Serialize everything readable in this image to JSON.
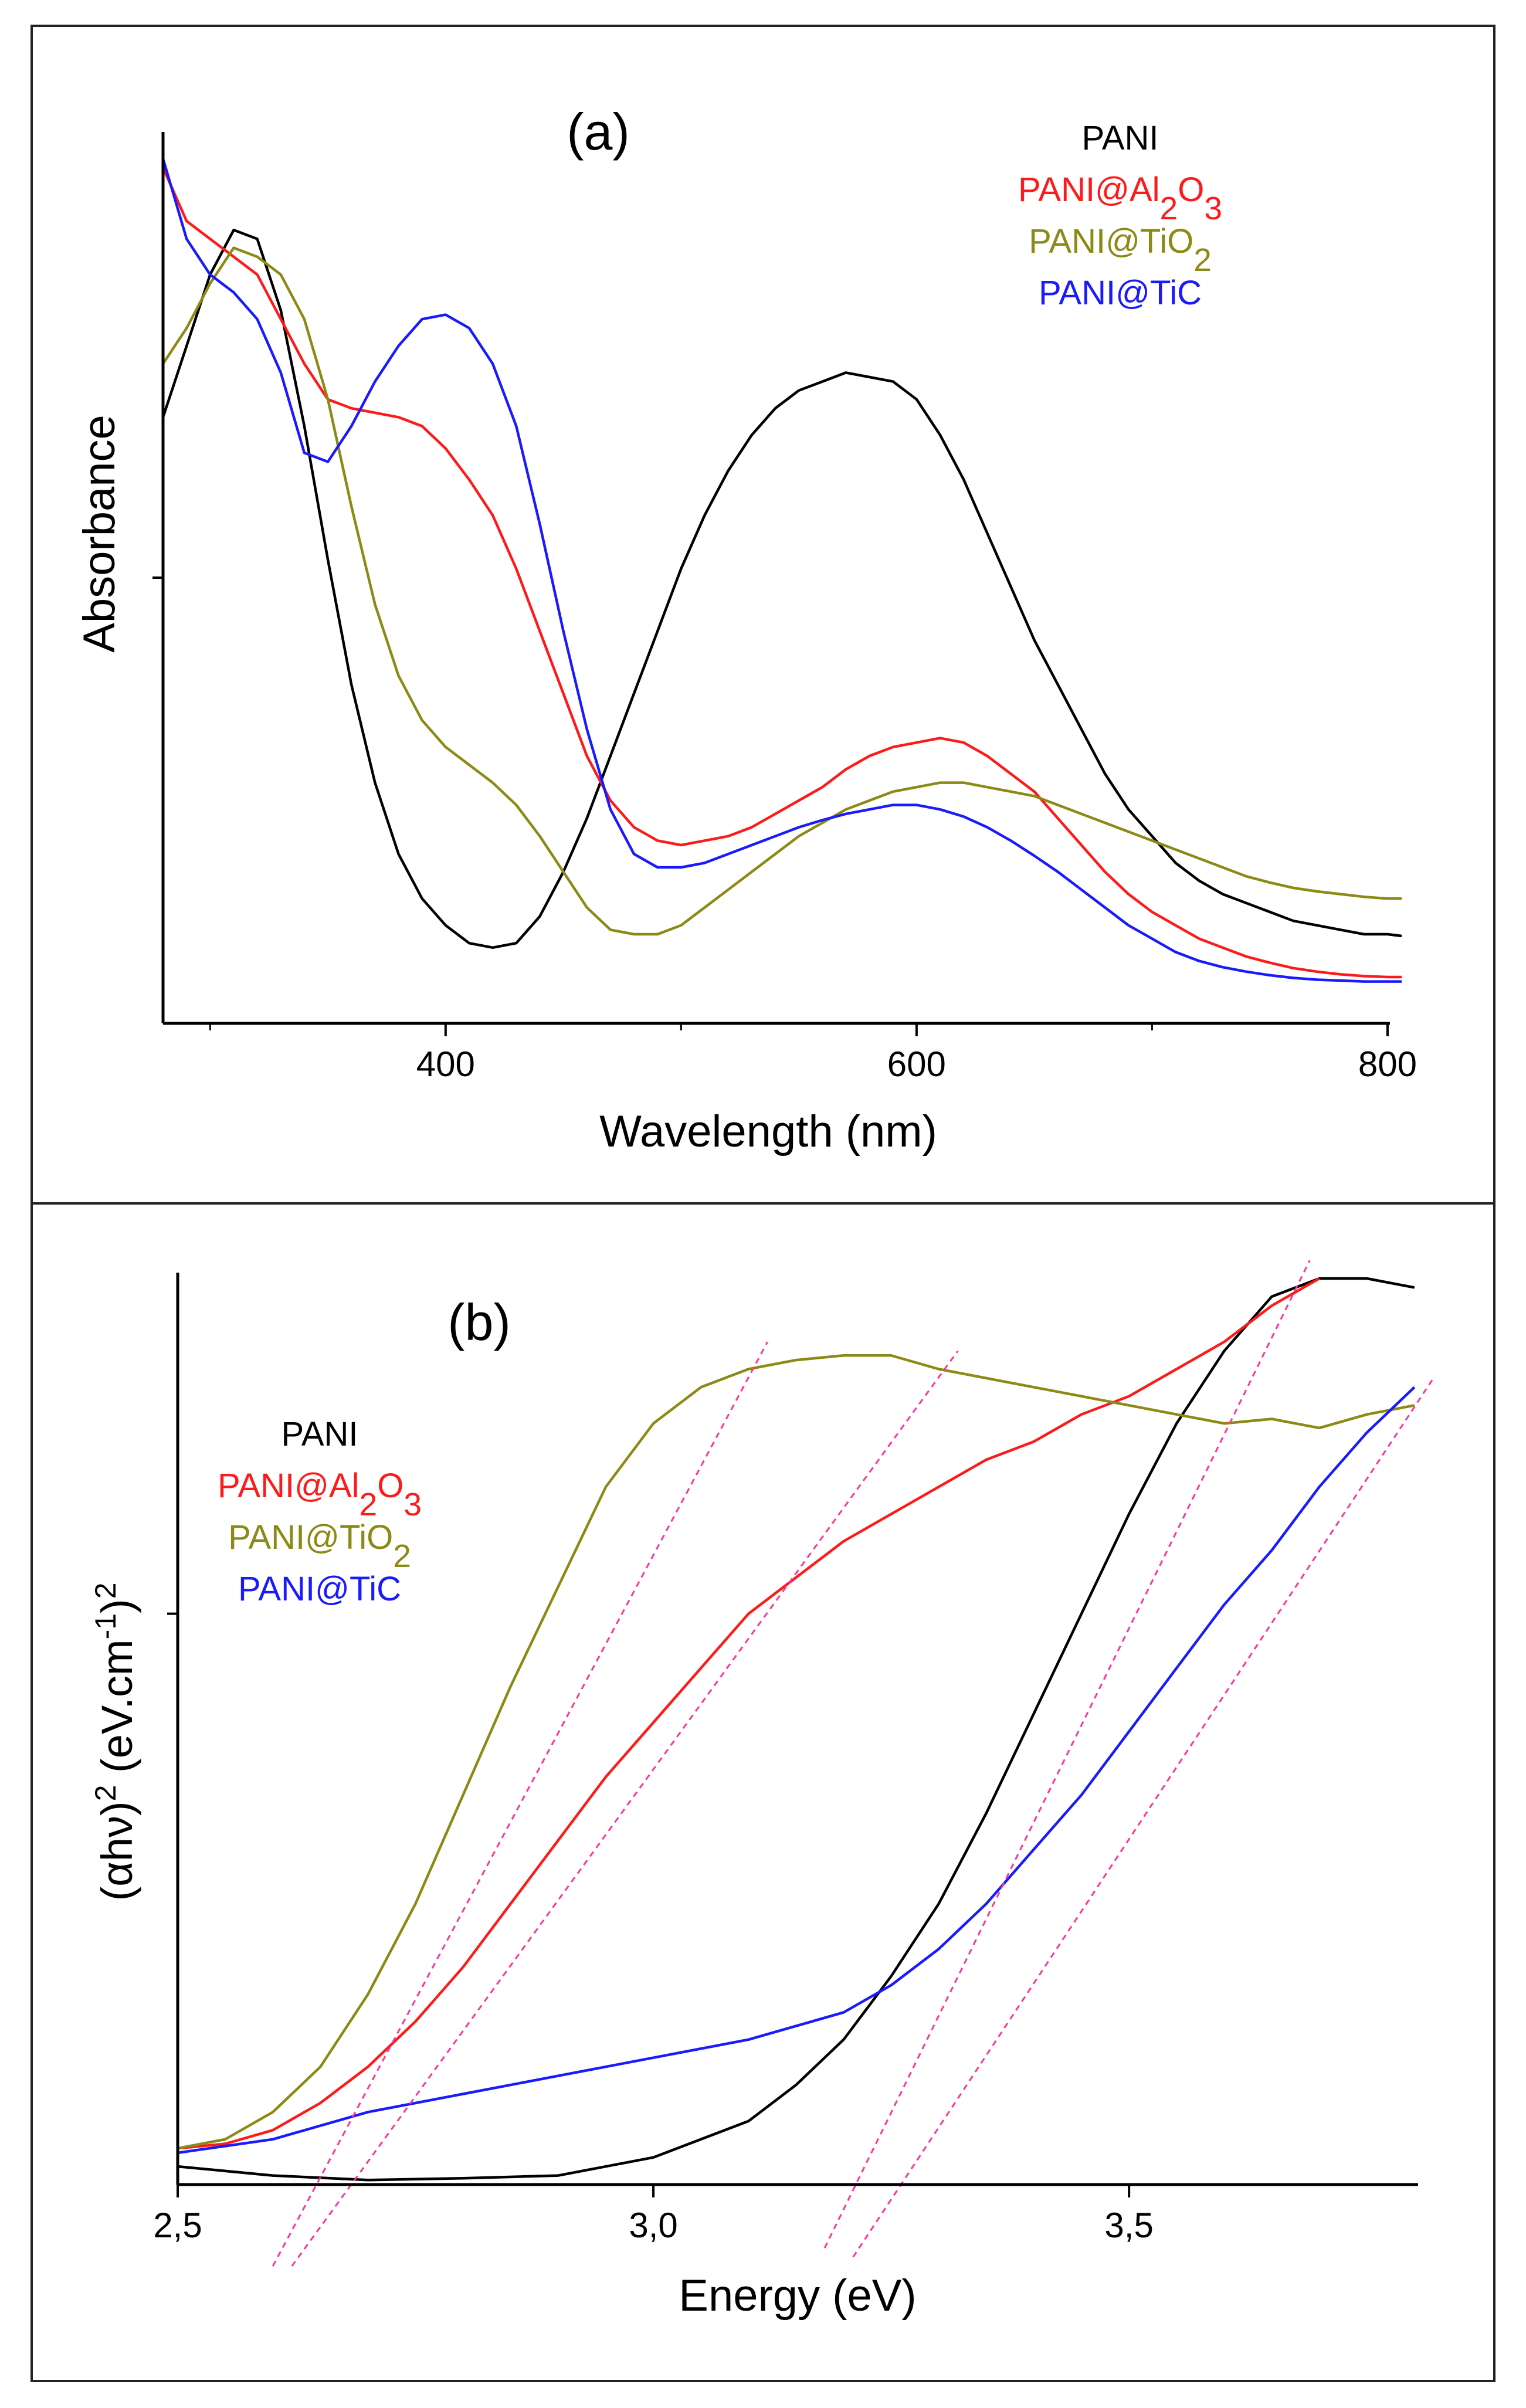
{
  "colors": {
    "PANI": "#000000",
    "PANI@Al2O3": "#ff1a1a",
    "PANI@TiO2": "#8c8a14",
    "PANI@TiC": "#1a1aff",
    "fit": "#ff3399"
  },
  "chart_data": [
    {
      "type": "line",
      "panel_label": "(a)",
      "xlabel": "Wavelength (nm)",
      "ylabel": "Absorbance",
      "xlim": [
        280,
        806
      ],
      "ylim": [
        0,
        1
      ],
      "x_ticks": [
        {
          "value": 400,
          "label": "400"
        },
        {
          "value": 600,
          "label": "600"
        },
        {
          "value": 800,
          "label": "800"
        }
      ],
      "x_minor_ticks": [
        300,
        500,
        700
      ],
      "y_ticks": [
        0.5
      ],
      "legend": [
        {
          "key": "PANI",
          "label": "PANI",
          "parts": [
            {
              "t": "PANI",
              "sub": false
            }
          ]
        },
        {
          "key": "PANI@Al2O3",
          "label": "PANI@Al2O3",
          "parts": [
            {
              "t": "PANI@Al",
              "sub": false
            },
            {
              "t": "2",
              "sub": true
            },
            {
              "t": "O",
              "sub": false
            },
            {
              "t": "3",
              "sub": true
            }
          ]
        },
        {
          "key": "PANI@TiO2",
          "label": "PANI@TiO2",
          "parts": [
            {
              "t": "PANI@TiO",
              "sub": false
            },
            {
              "t": "2",
              "sub": true
            }
          ]
        },
        {
          "key": "PANI@TiC",
          "label": "PANI@TiC",
          "parts": [
            {
              "t": "PANI@TiC",
              "sub": false
            }
          ]
        }
      ],
      "series": [
        {
          "name": "PANI",
          "x": [
            280,
            290,
            300,
            310,
            320,
            330,
            340,
            350,
            360,
            370,
            380,
            390,
            400,
            410,
            420,
            430,
            440,
            450,
            460,
            470,
            480,
            490,
            500,
            510,
            520,
            530,
            540,
            550,
            560,
            570,
            580,
            590,
            600,
            610,
            620,
            630,
            640,
            650,
            660,
            670,
            680,
            690,
            700,
            710,
            720,
            730,
            740,
            750,
            760,
            770,
            780,
            790,
            800,
            806
          ],
          "y": [
            0.68,
            0.76,
            0.84,
            0.89,
            0.88,
            0.8,
            0.67,
            0.52,
            0.38,
            0.27,
            0.19,
            0.14,
            0.11,
            0.09,
            0.085,
            0.09,
            0.12,
            0.17,
            0.23,
            0.3,
            0.37,
            0.44,
            0.51,
            0.57,
            0.62,
            0.66,
            0.69,
            0.71,
            0.72,
            0.73,
            0.725,
            0.72,
            0.7,
            0.66,
            0.61,
            0.55,
            0.49,
            0.43,
            0.38,
            0.33,
            0.28,
            0.24,
            0.21,
            0.18,
            0.16,
            0.145,
            0.135,
            0.125,
            0.115,
            0.11,
            0.105,
            0.1,
            0.1,
            0.098
          ]
        },
        {
          "name": "PANI@Al2O3",
          "x": [
            280,
            290,
            300,
            310,
            320,
            330,
            340,
            350,
            360,
            370,
            380,
            390,
            400,
            410,
            420,
            430,
            440,
            450,
            460,
            470,
            480,
            490,
            500,
            510,
            520,
            530,
            540,
            550,
            560,
            570,
            580,
            590,
            600,
            610,
            620,
            630,
            640,
            650,
            660,
            670,
            680,
            690,
            700,
            710,
            720,
            730,
            740,
            750,
            760,
            770,
            780,
            790,
            800,
            806
          ],
          "y": [
            0.96,
            0.9,
            0.88,
            0.86,
            0.84,
            0.79,
            0.74,
            0.7,
            0.69,
            0.685,
            0.68,
            0.67,
            0.645,
            0.61,
            0.57,
            0.51,
            0.44,
            0.37,
            0.3,
            0.25,
            0.22,
            0.205,
            0.2,
            0.205,
            0.21,
            0.22,
            0.235,
            0.25,
            0.265,
            0.285,
            0.3,
            0.31,
            0.315,
            0.32,
            0.315,
            0.3,
            0.28,
            0.26,
            0.23,
            0.2,
            0.17,
            0.145,
            0.125,
            0.11,
            0.095,
            0.085,
            0.075,
            0.068,
            0.062,
            0.058,
            0.055,
            0.053,
            0.052,
            0.052
          ]
        },
        {
          "name": "PANI@TiO2",
          "x": [
            280,
            290,
            300,
            310,
            320,
            330,
            340,
            350,
            360,
            370,
            380,
            390,
            400,
            410,
            420,
            430,
            440,
            450,
            460,
            470,
            480,
            490,
            500,
            510,
            520,
            530,
            540,
            550,
            560,
            570,
            580,
            590,
            600,
            610,
            620,
            630,
            640,
            650,
            660,
            670,
            680,
            690,
            700,
            710,
            720,
            730,
            740,
            750,
            760,
            770,
            780,
            790,
            800,
            806
          ],
          "y": [
            0.74,
            0.78,
            0.83,
            0.87,
            0.86,
            0.84,
            0.79,
            0.7,
            0.58,
            0.47,
            0.39,
            0.34,
            0.31,
            0.29,
            0.27,
            0.245,
            0.21,
            0.17,
            0.13,
            0.105,
            0.1,
            0.1,
            0.11,
            0.13,
            0.15,
            0.17,
            0.19,
            0.21,
            0.225,
            0.24,
            0.25,
            0.26,
            0.265,
            0.27,
            0.27,
            0.265,
            0.26,
            0.255,
            0.245,
            0.235,
            0.225,
            0.215,
            0.205,
            0.195,
            0.185,
            0.175,
            0.165,
            0.158,
            0.152,
            0.148,
            0.145,
            0.142,
            0.14,
            0.14
          ]
        },
        {
          "name": "PANI@TiC",
          "x": [
            280,
            290,
            300,
            310,
            320,
            330,
            340,
            350,
            360,
            370,
            380,
            390,
            400,
            410,
            420,
            430,
            440,
            450,
            460,
            470,
            480,
            490,
            500,
            510,
            520,
            530,
            540,
            550,
            560,
            570,
            580,
            590,
            600,
            610,
            620,
            630,
            640,
            650,
            660,
            670,
            680,
            690,
            700,
            710,
            720,
            730,
            740,
            750,
            760,
            770,
            780,
            790,
            800,
            806
          ],
          "y": [
            0.97,
            0.88,
            0.84,
            0.82,
            0.79,
            0.73,
            0.64,
            0.63,
            0.67,
            0.72,
            0.76,
            0.79,
            0.795,
            0.78,
            0.74,
            0.67,
            0.56,
            0.44,
            0.33,
            0.24,
            0.19,
            0.175,
            0.175,
            0.18,
            0.19,
            0.2,
            0.21,
            0.22,
            0.228,
            0.235,
            0.24,
            0.245,
            0.245,
            0.24,
            0.232,
            0.22,
            0.205,
            0.188,
            0.17,
            0.15,
            0.13,
            0.11,
            0.095,
            0.08,
            0.07,
            0.063,
            0.058,
            0.054,
            0.051,
            0.049,
            0.048,
            0.047,
            0.047,
            0.047
          ]
        }
      ]
    },
    {
      "type": "line",
      "panel_label": "(b)",
      "xlabel": "Energy (eV)",
      "ylabel": "(αhν)2 (eV.cm-1)2",
      "ylabel_parts": [
        {
          "t": "(αhν)",
          "sup": false
        },
        {
          "t": "2",
          "sup": true
        },
        {
          "t": " (eV.cm",
          "sup": false
        },
        {
          "t": "-1",
          "sup": true
        },
        {
          "t": ")",
          "sup": false
        },
        {
          "t": "2",
          "sup": true
        }
      ],
      "xlim": [
        2.5,
        3.81
      ],
      "ylim": [
        0,
        1
      ],
      "x_ticks": [
        {
          "value": 2.5,
          "label": "2,5"
        },
        {
          "value": 3.0,
          "label": "3,0"
        },
        {
          "value": 3.5,
          "label": "3,5"
        }
      ],
      "y_ticks": [
        0.63
      ],
      "legend": [
        {
          "key": "PANI",
          "label": "PANI",
          "parts": [
            {
              "t": "PANI",
              "sub": false
            }
          ]
        },
        {
          "key": "PANI@Al2O3",
          "label": "PANI@Al2O3",
          "parts": [
            {
              "t": "PANI@Al",
              "sub": false
            },
            {
              "t": "2",
              "sub": true
            },
            {
              "t": "O",
              "sub": false
            },
            {
              "t": "3",
              "sub": true
            }
          ]
        },
        {
          "key": "PANI@TiO2",
          "label": "PANI@TiO2",
          "parts": [
            {
              "t": "PANI@TiO",
              "sub": false
            },
            {
              "t": "2",
              "sub": true
            }
          ]
        },
        {
          "key": "PANI@TiC",
          "label": "PANI@TiC",
          "parts": [
            {
              "t": "PANI@TiC",
              "sub": false
            }
          ]
        }
      ],
      "series": [
        {
          "name": "PANI",
          "x": [
            2.5,
            2.6,
            2.7,
            2.8,
            2.9,
            3.0,
            3.1,
            3.15,
            3.2,
            3.25,
            3.3,
            3.35,
            3.4,
            3.45,
            3.5,
            3.55,
            3.6,
            3.65,
            3.7,
            3.75,
            3.8
          ],
          "y": [
            0.02,
            0.01,
            0.005,
            0.007,
            0.01,
            0.03,
            0.07,
            0.11,
            0.16,
            0.23,
            0.31,
            0.41,
            0.52,
            0.63,
            0.74,
            0.84,
            0.92,
            0.98,
            1.0,
            1.0,
            0.99
          ]
        },
        {
          "name": "PANI@Al2O3",
          "x": [
            2.5,
            2.55,
            2.6,
            2.65,
            2.7,
            2.75,
            2.8,
            2.85,
            2.9,
            2.95,
            3.0,
            3.05,
            3.1,
            3.15,
            3.2,
            3.25,
            3.3,
            3.35,
            3.4,
            3.45,
            3.5,
            3.55,
            3.6,
            3.65,
            3.7
          ],
          "y": [
            0.04,
            0.045,
            0.06,
            0.09,
            0.13,
            0.18,
            0.24,
            0.31,
            0.38,
            0.45,
            0.51,
            0.57,
            0.63,
            0.67,
            0.71,
            0.74,
            0.77,
            0.8,
            0.82,
            0.85,
            0.87,
            0.9,
            0.93,
            0.97,
            1.0
          ]
        },
        {
          "name": "PANI@TiO2",
          "x": [
            2.5,
            2.55,
            2.6,
            2.65,
            2.7,
            2.75,
            2.8,
            2.85,
            2.9,
            2.95,
            3.0,
            3.05,
            3.1,
            3.15,
            3.2,
            3.25,
            3.3,
            3.35,
            3.4,
            3.45,
            3.5,
            3.55,
            3.6,
            3.65,
            3.7,
            3.75,
            3.8
          ],
          "y": [
            0.04,
            0.05,
            0.08,
            0.13,
            0.21,
            0.31,
            0.43,
            0.55,
            0.66,
            0.77,
            0.84,
            0.88,
            0.9,
            0.91,
            0.915,
            0.915,
            0.9,
            0.89,
            0.88,
            0.87,
            0.86,
            0.85,
            0.84,
            0.845,
            0.835,
            0.85,
            0.86
          ]
        },
        {
          "name": "PANI@TiC",
          "x": [
            2.5,
            2.6,
            2.7,
            2.8,
            2.9,
            3.0,
            3.1,
            3.2,
            3.25,
            3.3,
            3.35,
            3.4,
            3.45,
            3.5,
            3.55,
            3.6,
            3.65,
            3.7,
            3.75,
            3.8
          ],
          "y": [
            0.035,
            0.05,
            0.08,
            0.1,
            0.12,
            0.14,
            0.16,
            0.19,
            0.22,
            0.26,
            0.31,
            0.37,
            0.43,
            0.5,
            0.57,
            0.64,
            0.7,
            0.77,
            0.83,
            0.88
          ]
        }
      ],
      "fit_lines": [
        {
          "series": "PANI@TiO2",
          "x": [
            2.6,
            3.12
          ],
          "y": [
            -0.09,
            0.93
          ]
        },
        {
          "series": "PANI@Al2O3",
          "x": [
            2.62,
            3.32
          ],
          "y": [
            -0.09,
            0.92
          ]
        },
        {
          "series": "PANI",
          "x": [
            3.18,
            3.69
          ],
          "y": [
            -0.07,
            1.02
          ]
        },
        {
          "series": "PANI@TiC",
          "x": [
            3.21,
            3.82
          ],
          "y": [
            -0.08,
            0.89
          ]
        }
      ]
    }
  ]
}
